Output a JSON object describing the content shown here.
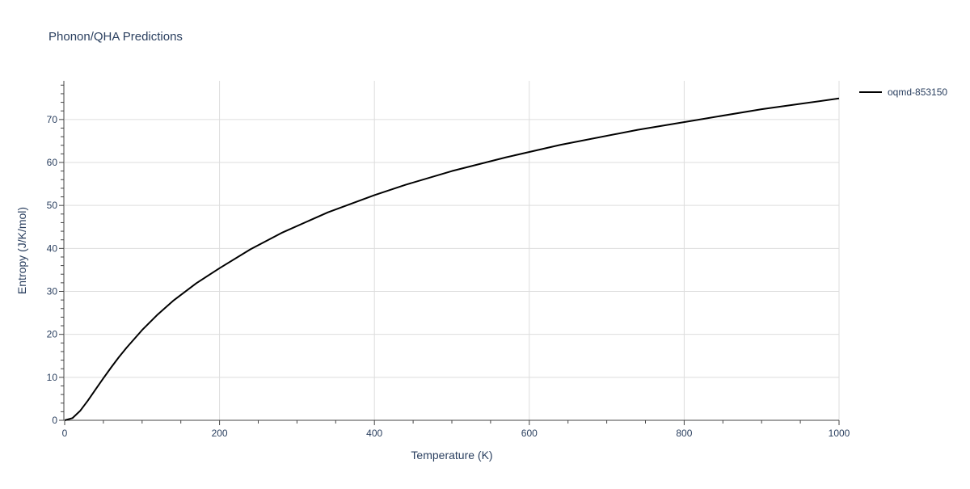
{
  "chart_data": {
    "type": "line",
    "title": "Phonon/QHA Predictions",
    "xlabel": "Temperature (K)",
    "ylabel": "Entropy (J/K/mol)",
    "xlim": [
      0,
      1000
    ],
    "ylim": [
      0,
      79
    ],
    "xticks": [
      0,
      200,
      400,
      600,
      800,
      1000
    ],
    "yticks": [
      0,
      10,
      20,
      30,
      40,
      50,
      60,
      70
    ],
    "grid": true,
    "legend_position": "top-right",
    "series": [
      {
        "name": "oqmd-853150",
        "color": "#000000",
        "x": [
          0,
          10,
          20,
          30,
          40,
          50,
          60,
          70,
          80,
          100,
          120,
          140,
          170,
          200,
          240,
          280,
          340,
          400,
          440,
          500,
          570,
          640,
          740,
          820,
          900,
          1000
        ],
        "y": [
          0,
          0.5,
          2.2,
          4.6,
          7.2,
          9.8,
          12.3,
          14.7,
          16.9,
          21.0,
          24.6,
          27.8,
          31.9,
          35.4,
          39.8,
          43.6,
          48.4,
          52.4,
          54.8,
          58.0,
          61.2,
          64.1,
          67.6,
          70.0,
          72.4,
          74.9
        ]
      }
    ]
  }
}
